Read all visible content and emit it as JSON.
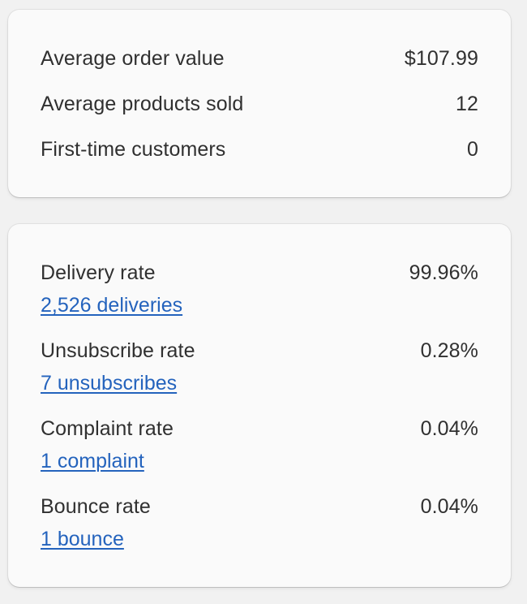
{
  "summary": {
    "rows": [
      {
        "label": "Average order value",
        "value": "$107.99"
      },
      {
        "label": "Average products sold",
        "value": "12"
      },
      {
        "label": "First-time customers",
        "value": "0"
      }
    ]
  },
  "rates": {
    "rows": [
      {
        "label": "Delivery rate",
        "value": "99.96%",
        "link": "2,526 deliveries"
      },
      {
        "label": "Unsubscribe rate",
        "value": "0.28%",
        "link": "7 unsubscribes"
      },
      {
        "label": "Complaint rate",
        "value": "0.04%",
        "link": "1 complaint"
      },
      {
        "label": "Bounce rate",
        "value": "0.04%",
        "link": "1 bounce"
      }
    ]
  },
  "colors": {
    "link": "#2463bd",
    "text": "#303030",
    "card_bg": "#fafafa",
    "page_bg": "#f1f1f1"
  }
}
